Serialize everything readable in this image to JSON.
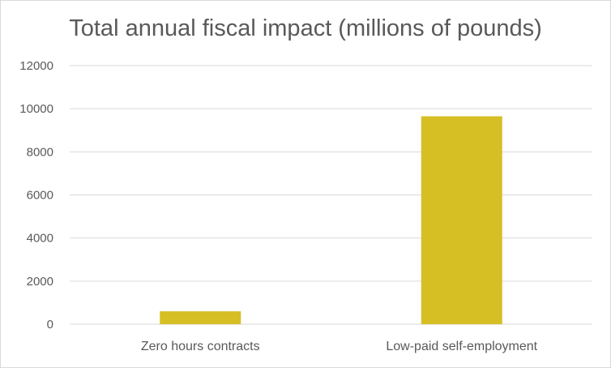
{
  "chart_data": {
    "type": "bar",
    "title": "Total annual fiscal impact (millions of pounds)",
    "categories": [
      "Zero hours contracts",
      "Low-paid self-employment"
    ],
    "values": [
      600,
      9650
    ],
    "xlabel": "",
    "ylabel": "",
    "ylim": [
      0,
      12000
    ],
    "yticks": [
      0,
      2000,
      4000,
      6000,
      8000,
      10000,
      12000
    ],
    "grid": true,
    "legend": "none",
    "bar_color": "#d5bf24",
    "gridline_color": "#d9d9d9"
  }
}
